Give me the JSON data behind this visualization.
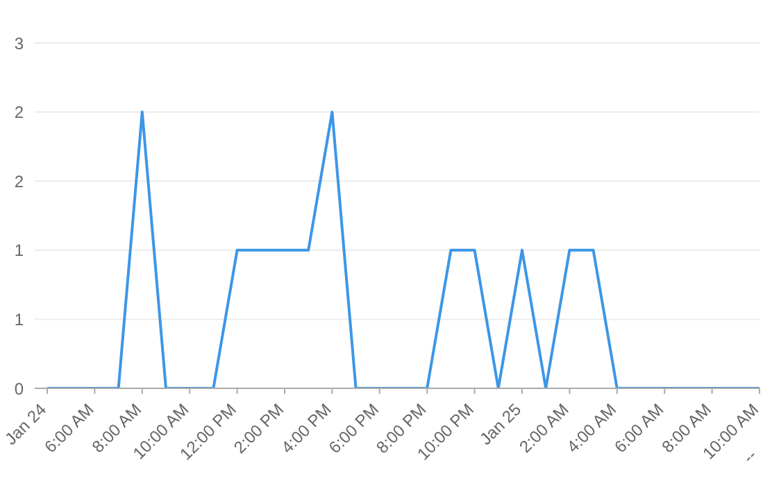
{
  "chart_data": {
    "type": "line",
    "categories": [
      "Jan 24",
      null,
      "6:00 AM",
      null,
      "8:00 AM",
      null,
      "10:00 AM",
      null,
      "12:00 PM",
      null,
      "2:00 PM",
      null,
      "4:00 PM",
      null,
      "6:00 PM",
      null,
      "8:00 PM",
      null,
      "10:00 PM",
      null,
      "Jan 25",
      null,
      "2:00 AM",
      null,
      "4:00 AM",
      null,
      "6:00 AM",
      null,
      "8:00 AM",
      null,
      "10:00 AM"
    ],
    "series": [
      {
        "color": "#3d96e6",
        "values": [
          0,
          0,
          0,
          0,
          2,
          0,
          0,
          0,
          1,
          1,
          1,
          1,
          2,
          0,
          0,
          0,
          0,
          1,
          1,
          0,
          1,
          0,
          1,
          1,
          0,
          0,
          0,
          0,
          0,
          0,
          0
        ]
      }
    ],
    "ylim": [
      0,
      2.5
    ],
    "yticks": [
      0,
      {
        "value": 0.5,
        "label": "1"
      },
      1,
      {
        "value": 1.5,
        "label": "2"
      },
      2,
      {
        "value": 2.5,
        "label": "3"
      }
    ],
    "annotations": [
      "--"
    ],
    "grid": "y",
    "legend": false,
    "marker": "none",
    "line_style": "solid"
  }
}
